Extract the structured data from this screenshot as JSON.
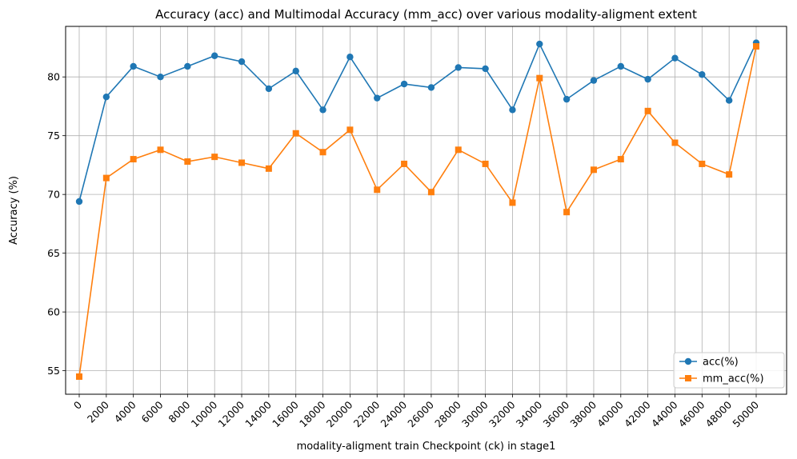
{
  "chart_data": {
    "type": "line",
    "title": "Accuracy (acc) and Multimodal Accuracy (mm_acc) over various modality-aligment extent",
    "xlabel": "modality-aligment train Checkpoint (ck) in stage1",
    "ylabel": "Accuracy (%)",
    "categories": [
      "0",
      "2000",
      "4000",
      "6000",
      "8000",
      "10000",
      "12000",
      "14000",
      "16000",
      "18000",
      "20000",
      "22000",
      "24000",
      "26000",
      "28000",
      "30000",
      "32000",
      "34000",
      "36000",
      "38000",
      "40000",
      "42000",
      "44000",
      "46000",
      "48000",
      "50000"
    ],
    "ylim": [
      53.0,
      84.3
    ],
    "yticks": [
      "55",
      "60",
      "65",
      "70",
      "75",
      "80"
    ],
    "grid": true,
    "legend_position": "lower-right",
    "series": [
      {
        "name": "acc(%)",
        "color": "#1f77b4",
        "marker": "circle",
        "values": [
          69.4,
          78.3,
          80.9,
          80.0,
          80.9,
          81.8,
          81.3,
          79.0,
          80.5,
          77.2,
          81.7,
          78.2,
          79.4,
          79.1,
          80.8,
          80.7,
          77.2,
          82.8,
          78.1,
          79.7,
          80.9,
          79.8,
          81.6,
          80.2,
          78.0,
          82.9
        ]
      },
      {
        "name": "mm_acc(%)",
        "color": "#ff7f0e",
        "marker": "square",
        "values": [
          54.5,
          71.4,
          73.0,
          73.8,
          72.8,
          73.2,
          72.7,
          72.2,
          75.2,
          73.6,
          75.5,
          70.4,
          72.6,
          70.2,
          73.8,
          72.6,
          69.3,
          79.9,
          68.5,
          72.1,
          73.0,
          77.1,
          74.4,
          72.6,
          71.7,
          82.6
        ]
      }
    ]
  }
}
